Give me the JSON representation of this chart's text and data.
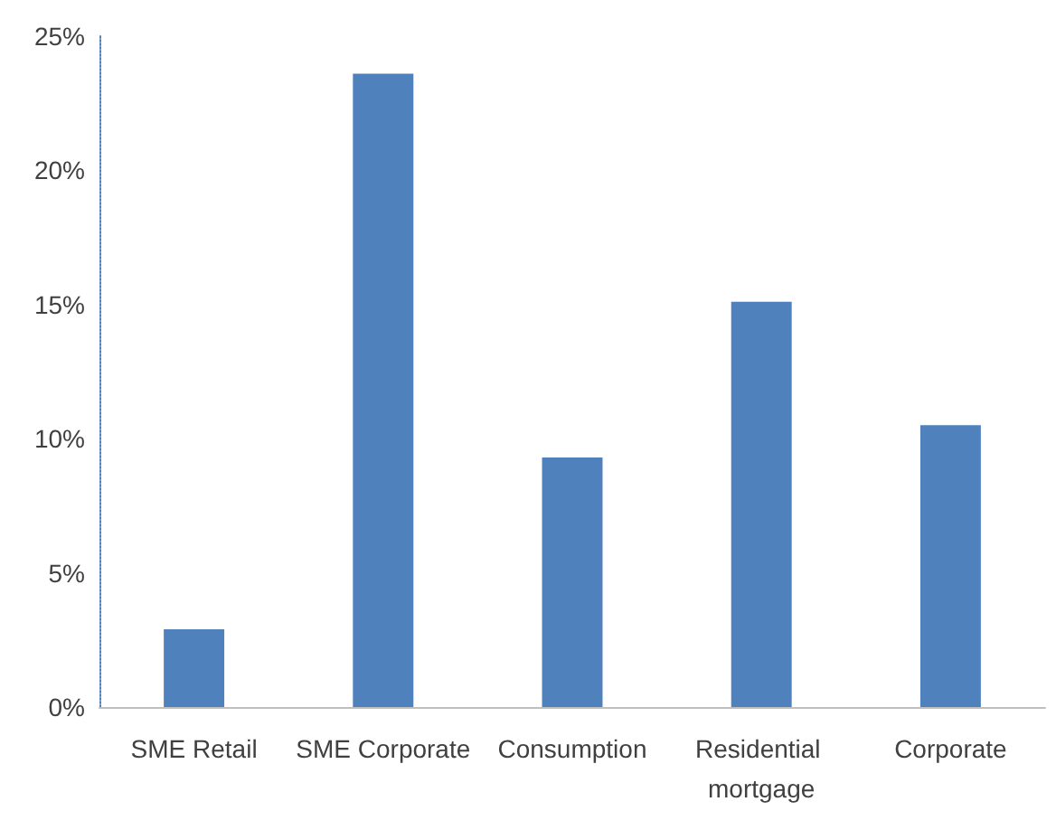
{
  "chart_data": {
    "type": "bar",
    "categories": [
      "SME Retail",
      "SME Corporate",
      "Consumption",
      "Residential mortgage",
      "Corporate"
    ],
    "values": [
      2.9,
      23.6,
      9.3,
      15.1,
      10.5
    ],
    "color": "#4f81bd",
    "ylim": [
      0,
      25
    ],
    "yticks": [
      {
        "value": 0,
        "label": "0%"
      },
      {
        "value": 5,
        "label": "5%"
      },
      {
        "value": 10,
        "label": "10%"
      },
      {
        "value": 15,
        "label": "15%"
      },
      {
        "value": 20,
        "label": "20%"
      },
      {
        "value": 25,
        "label": "25%"
      }
    ],
    "grid": false
  }
}
